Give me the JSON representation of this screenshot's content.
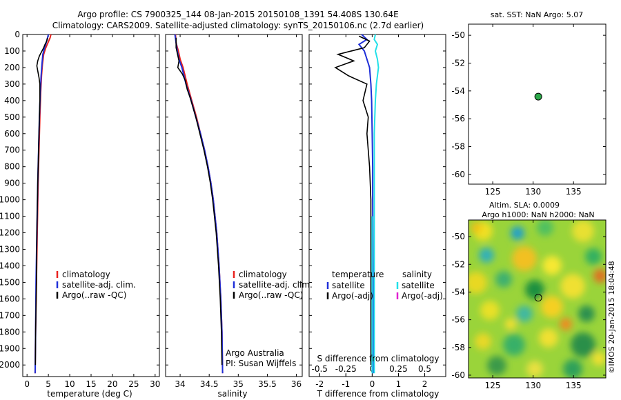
{
  "header": {
    "title_line1": "Argo profile: CS 7900325_144 08-Jan-2015 20150108_1391 54.408S 130.64E",
    "title_line2": "Climatology: CARS2009. Satellite-adjusted climatology: synTS_20150106.nc (2.7d earlier)"
  },
  "timestamp": "©IMOS 20-Jan-2015 18:04:48",
  "colors": {
    "climatology": "#e8221e",
    "satellite": "#1f2fd8",
    "argo": "#000000",
    "sal_satellite": "#22e0e8",
    "sal_argo": "#e020d0",
    "marker_fill": "#2ca84a"
  },
  "chart_data": [
    {
      "type": "line",
      "name": "temperature-profile",
      "xlabel": "temperature (deg C)",
      "ylabel": "",
      "xlim": [
        -1,
        31
      ],
      "ylim": [
        2070,
        0
      ],
      "xticks": [
        0,
        5,
        10,
        15,
        20,
        25,
        30
      ],
      "yticks": [
        0,
        100,
        200,
        300,
        400,
        500,
        600,
        700,
        800,
        900,
        1000,
        1100,
        1200,
        1300,
        1400,
        1500,
        1600,
        1700,
        1800,
        1900,
        2000
      ],
      "legend": [
        "climatology",
        "satellite-adj. clim.",
        "Argo(..raw -QC)"
      ],
      "series": [
        {
          "name": "climatology",
          "depth": [
            0,
            20,
            50,
            80,
            120,
            180,
            250,
            350,
            500,
            700,
            900,
            1200,
            1500,
            1800,
            2050
          ],
          "values": [
            5.6,
            5.4,
            4.9,
            4.4,
            3.9,
            3.6,
            3.4,
            3.2,
            3.0,
            2.8,
            2.6,
            2.4,
            2.2,
            2.0,
            1.9
          ]
        },
        {
          "name": "satellite-adj. clim.",
          "depth": [
            0,
            20,
            50,
            80,
            120,
            180,
            250,
            350,
            500,
            700,
            900,
            1200,
            1500,
            1800,
            2050
          ],
          "values": [
            5.0,
            4.8,
            4.5,
            4.1,
            3.7,
            3.5,
            3.3,
            3.1,
            2.9,
            2.7,
            2.5,
            2.3,
            2.1,
            2.0,
            1.9
          ]
        },
        {
          "name": "Argo(..raw -QC)",
          "depth": [
            20,
            40,
            60,
            80,
            100,
            130,
            160,
            190,
            220,
            260,
            300,
            400,
            500,
            700,
            900,
            1200,
            1500,
            1800,
            2000
          ],
          "values": [
            4.8,
            4.6,
            4.2,
            3.9,
            3.5,
            2.9,
            2.5,
            2.3,
            2.5,
            2.8,
            3.0,
            3.0,
            2.9,
            2.7,
            2.5,
            2.3,
            2.2,
            2.0,
            1.95
          ]
        }
      ]
    },
    {
      "type": "line",
      "name": "salinity-profile",
      "xlabel": "salinity",
      "ylabel": "",
      "xlim": [
        33.75,
        36.1
      ],
      "ylim": [
        2070,
        0
      ],
      "xticks": [
        34,
        34.5,
        35,
        35.5,
        36
      ],
      "legend": [
        "climatology",
        "satellite-adj. clim.",
        "Argo(..raw -QC)"
      ],
      "annotation": [
        "Argo Australia",
        "PI: Susan Wijffels"
      ],
      "series": [
        {
          "name": "climatology",
          "depth": [
            0,
            50,
            100,
            150,
            200,
            300,
            400,
            500,
            600,
            700,
            800,
            900,
            1000,
            1200,
            1400,
            1600,
            1800,
            2050
          ],
          "values": [
            33.92,
            33.93,
            33.97,
            34.0,
            34.05,
            34.12,
            34.2,
            34.28,
            34.35,
            34.42,
            34.48,
            34.53,
            34.57,
            34.63,
            34.67,
            34.7,
            34.72,
            34.73
          ]
        },
        {
          "name": "satellite-adj. clim.",
          "depth": [
            0,
            50,
            100,
            150,
            200,
            300,
            400,
            500,
            600,
            700,
            800,
            900,
            1000,
            1200,
            1400,
            1600,
            1800,
            2050
          ],
          "values": [
            33.91,
            33.93,
            33.95,
            33.98,
            34.03,
            34.1,
            34.19,
            34.27,
            34.35,
            34.42,
            34.48,
            34.53,
            34.57,
            34.63,
            34.67,
            34.7,
            34.72,
            34.73
          ]
        },
        {
          "name": "Argo(..raw -QC)",
          "depth": [
            20,
            80,
            160,
            200,
            240,
            280,
            330,
            380,
            440,
            500,
            600,
            700,
            800,
            900,
            1000,
            1200,
            1400,
            1600,
            1800,
            2000
          ],
          "values": [
            33.93,
            33.93,
            33.98,
            33.96,
            34.04,
            34.09,
            34.12,
            34.17,
            34.22,
            34.27,
            34.34,
            34.41,
            34.47,
            34.52,
            34.56,
            34.62,
            34.66,
            34.69,
            34.71,
            34.72
          ]
        }
      ]
    },
    {
      "type": "line",
      "name": "difference-profile",
      "xlabel": "T difference from climatology",
      "xlabel_top": "S difference from climatology",
      "xlim": [
        -2.4,
        2.8
      ],
      "ylim": [
        2070,
        0
      ],
      "xticks": [
        -2,
        -1,
        0,
        1,
        2
      ],
      "xticks_s": [
        "-0.5",
        "-0.25",
        "0",
        "0.25",
        "0.5"
      ],
      "legend_titles": [
        "temperature",
        "salinity"
      ],
      "legend_temperature": [
        "satellite",
        "Argo(-adj)"
      ],
      "legend_salinity": [
        "satellite",
        "Argo(-adj)"
      ],
      "series": [
        {
          "name": "temperature satellite",
          "depth": [
            0,
            30,
            60,
            100,
            150,
            200,
            300,
            400,
            600,
            800,
            1000,
            1500,
            2050
          ],
          "values": [
            -0.4,
            -0.2,
            -0.5,
            -0.3,
            -0.2,
            -0.1,
            -0.05,
            -0.02,
            0,
            0.02,
            0.02,
            0.03,
            0.03
          ]
        },
        {
          "name": "temperature Argo(-adj)",
          "depth": [
            10,
            40,
            80,
            120,
            160,
            200,
            250,
            300,
            400,
            500,
            600,
            800,
            1000,
            1400,
            1800,
            2000
          ],
          "values": [
            -0.5,
            -0.1,
            -0.3,
            -1.3,
            -0.7,
            -1.4,
            -0.9,
            -0.2,
            -0.35,
            -0.15,
            -0.2,
            -0.1,
            -0.05,
            -0.05,
            -0.05,
            -0.05
          ]
        },
        {
          "name": "salinity satellite",
          "depth": [
            0,
            30,
            60,
            100,
            150,
            200,
            300,
            400,
            600,
            800,
            1000,
            1500,
            2050
          ],
          "values": [
            0.03,
            0.02,
            0.05,
            0.03,
            0.05,
            0.06,
            0.04,
            0.03,
            0.02,
            0.02,
            0.02,
            0.02,
            0.02
          ]
        }
      ]
    },
    {
      "type": "scatter",
      "name": "sst-map",
      "title": "sat. SST: NaN Argo: 5.07",
      "xlim": [
        122,
        139
      ],
      "ylim": [
        -60.7,
        -49.2
      ],
      "xticks": [
        125,
        130,
        135
      ],
      "yticks": [
        -50,
        -52,
        -54,
        -56,
        -58,
        -60
      ],
      "x": [
        130.64
      ],
      "y": [
        -54.408
      ]
    },
    {
      "type": "heatmap",
      "name": "sla-map",
      "title_line1": "Altim. SLA: 0.0009",
      "title_line2": "Argo h1000: NaN h2000: NaN",
      "xlim": [
        122,
        139
      ],
      "ylim": [
        -60.2,
        -48.8
      ],
      "xticks": [
        125,
        130,
        135
      ],
      "yticks": [
        -50,
        -52,
        -54,
        -56,
        -58,
        -60
      ],
      "x": [
        130.64
      ],
      "y": [
        -54.408
      ]
    }
  ]
}
